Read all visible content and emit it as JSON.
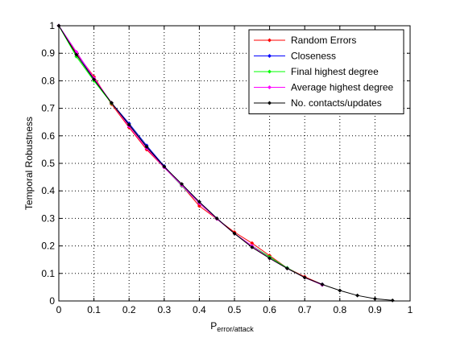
{
  "chart_data": {
    "type": "line",
    "title": "",
    "xlabel": "P",
    "xlabel_subscript": "error/attack",
    "ylabel": "Temporal Robustness",
    "xlim": [
      0,
      1
    ],
    "ylim": [
      0,
      1
    ],
    "xticks": [
      0,
      0.1,
      0.2,
      0.3,
      0.4,
      0.5,
      0.6,
      0.7,
      0.8,
      0.9,
      1
    ],
    "yticks": [
      0,
      0.1,
      0.2,
      0.3,
      0.4,
      0.5,
      0.6,
      0.7,
      0.8,
      0.9,
      1
    ],
    "xtick_labels": [
      "0",
      "0.1",
      "0.2",
      "0.3",
      "0.4",
      "0.5",
      "0.6",
      "0.7",
      "0.8",
      "0.9",
      "1"
    ],
    "ytick_labels": [
      "0",
      "0.1",
      "0.2",
      "0.3",
      "0.4",
      "0.5",
      "0.6",
      "0.7",
      "0.8",
      "0.9",
      "1"
    ],
    "grid": true,
    "legend_position": "top-right",
    "series": [
      {
        "name": "Random Errors",
        "color": "#ff0000",
        "x": [
          0,
          0.05,
          0.1,
          0.15,
          0.2,
          0.25,
          0.3,
          0.35,
          0.4,
          0.45,
          0.5,
          0.55,
          0.6,
          0.65,
          0.7,
          0.75
        ],
        "y": [
          1,
          0.9,
          0.815,
          0.715,
          0.63,
          0.55,
          0.485,
          0.42,
          0.345,
          0.298,
          0.25,
          0.21,
          0.165,
          0.12,
          0.088,
          0.06
        ]
      },
      {
        "name": "Closeness",
        "color": "#0000ff",
        "x": [
          0,
          0.05,
          0.1,
          0.15,
          0.2,
          0.25,
          0.3,
          0.35,
          0.4,
          0.45,
          0.5,
          0.55,
          0.6,
          0.65,
          0.7,
          0.75
        ],
        "y": [
          1,
          0.905,
          0.805,
          0.72,
          0.645,
          0.565,
          0.49,
          0.42,
          0.36,
          0.3,
          0.245,
          0.2,
          0.16,
          0.12,
          0.085,
          0.06
        ]
      },
      {
        "name": "Final highest degree",
        "color": "#00ff00",
        "x": [
          0,
          0.05,
          0.1,
          0.15,
          0.2,
          0.25,
          0.3,
          0.35,
          0.4,
          0.45,
          0.5,
          0.55,
          0.6,
          0.65,
          0.7,
          0.75
        ],
        "y": [
          1,
          0.888,
          0.8,
          0.718,
          0.64,
          0.56,
          0.485,
          0.418,
          0.355,
          0.298,
          0.245,
          0.2,
          0.16,
          0.12,
          0.085,
          0.058
        ]
      },
      {
        "name": "Average highest degree",
        "color": "#ff00ff",
        "x": [
          0,
          0.05,
          0.1,
          0.15,
          0.2,
          0.25,
          0.3,
          0.35,
          0.4,
          0.45,
          0.5,
          0.55,
          0.6,
          0.65,
          0.7,
          0.75
        ],
        "y": [
          1,
          0.905,
          0.81,
          0.72,
          0.635,
          0.555,
          0.485,
          0.42,
          0.355,
          0.298,
          0.245,
          0.2,
          0.155,
          0.118,
          0.085,
          0.058
        ]
      },
      {
        "name": "No. contacts/updates",
        "color": "#000000",
        "x": [
          0,
          0.05,
          0.1,
          0.15,
          0.2,
          0.25,
          0.3,
          0.35,
          0.4,
          0.45,
          0.5,
          0.55,
          0.6,
          0.65,
          0.7,
          0.75,
          0.8,
          0.85,
          0.9,
          0.95
        ],
        "y": [
          1,
          0.895,
          0.805,
          0.72,
          0.64,
          0.56,
          0.488,
          0.425,
          0.36,
          0.3,
          0.245,
          0.195,
          0.155,
          0.118,
          0.085,
          0.06,
          0.038,
          0.02,
          0.008,
          0.002
        ]
      }
    ]
  }
}
